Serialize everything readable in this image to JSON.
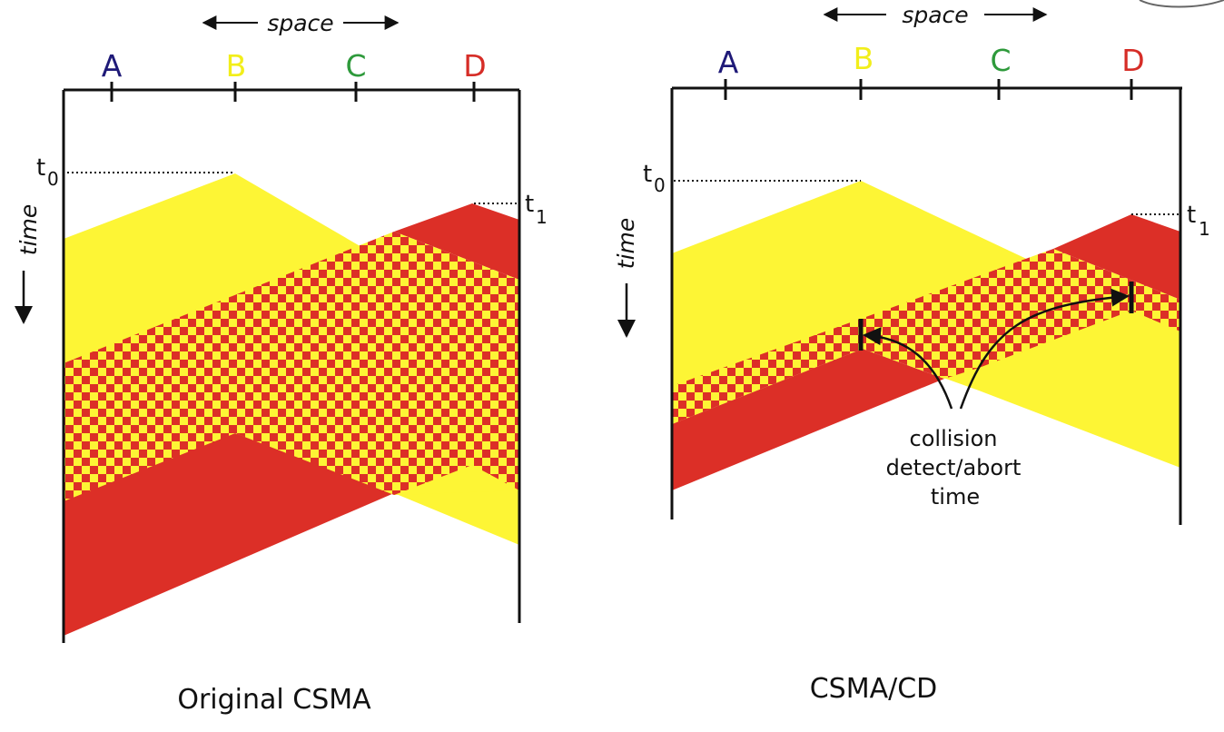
{
  "colors": {
    "yellow": "#fdf535",
    "red": "#dc2f27",
    "line": "#111111",
    "node_A": "#1f1a78",
    "node_B": "#f2ee1a",
    "node_C": "#2e9a3b",
    "node_D": "#d62d27"
  },
  "icons": {
    "space_arrow": "double-headed-arrow",
    "time_arrow": "down-arrow",
    "abort_marker": "vertical-bar"
  },
  "left_panel": {
    "space_label": "space",
    "time_label": "time",
    "nodes": [
      "A",
      "B",
      "C",
      "D"
    ],
    "t0": {
      "main": "t",
      "sub": "0"
    },
    "t1": {
      "main": "t",
      "sub": "1"
    },
    "caption": "Original CSMA"
  },
  "right_panel": {
    "space_label": "space",
    "time_label": "time",
    "nodes": [
      "A",
      "B",
      "C",
      "D"
    ],
    "t0": {
      "main": "t",
      "sub": "0"
    },
    "t1": {
      "main": "t",
      "sub": "1"
    },
    "annotation_lines": [
      "collision",
      "detect/abort",
      "time"
    ],
    "caption": "CSMA/CD"
  }
}
